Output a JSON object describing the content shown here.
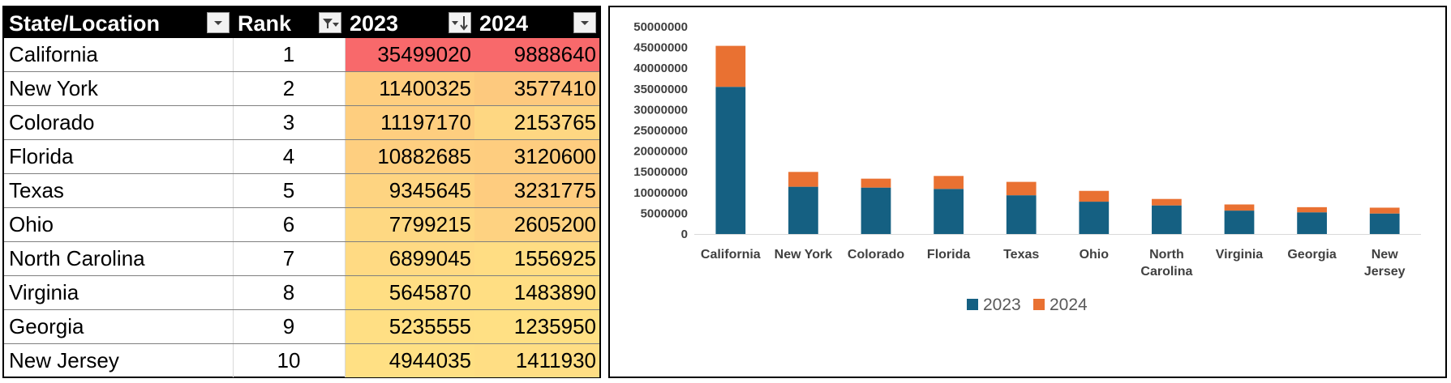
{
  "table": {
    "headers": [
      "State/Location",
      "Rank",
      "2023",
      "2024"
    ],
    "rows": [
      {
        "state": "California",
        "rank": "1",
        "y2023": "35499020",
        "y2024": "9888640"
      },
      {
        "state": "New York",
        "rank": "2",
        "y2023": "11400325",
        "y2024": "3577410"
      },
      {
        "state": "Colorado",
        "rank": "3",
        "y2023": "11197170",
        "y2024": "2153765"
      },
      {
        "state": "Florida",
        "rank": "4",
        "y2023": "10882685",
        "y2024": "3120600"
      },
      {
        "state": "Texas",
        "rank": "5",
        "y2023": "9345645",
        "y2024": "3231775"
      },
      {
        "state": "Ohio",
        "rank": "6",
        "y2023": "7799215",
        "y2024": "2605200"
      },
      {
        "state": "North Carolina",
        "rank": "7",
        "y2023": "6899045",
        "y2024": "1556925"
      },
      {
        "state": "Virginia",
        "rank": "8",
        "y2023": "5645870",
        "y2024": "1483890"
      },
      {
        "state": "Georgia",
        "rank": "9",
        "y2023": "5235555",
        "y2024": "1235950"
      },
      {
        "state": "New Jersey",
        "rank": "10",
        "y2023": "4944035",
        "y2024": "1411930"
      }
    ]
  },
  "chart_data": {
    "type": "bar",
    "stacked": true,
    "categories": [
      "California",
      "New York",
      "Colorado",
      "Florida",
      "Texas",
      "Ohio",
      "North Carolina",
      "Virginia",
      "Georgia",
      "New Jersey"
    ],
    "category_lines": [
      [
        "California"
      ],
      [
        "New York"
      ],
      [
        "Colorado"
      ],
      [
        "Florida"
      ],
      [
        "Texas"
      ],
      [
        "Ohio"
      ],
      [
        "North",
        "Carolina"
      ],
      [
        "Virginia"
      ],
      [
        "Georgia"
      ],
      [
        "New",
        "Jersey"
      ]
    ],
    "series": [
      {
        "name": "2023",
        "color": "#156082",
        "values": [
          35499020,
          11400325,
          11197170,
          10882685,
          9345645,
          7799215,
          6899045,
          5645870,
          5235555,
          4944035
        ]
      },
      {
        "name": "2024",
        "color": "#e97132",
        "values": [
          9888640,
          3577410,
          2153765,
          3120600,
          3231775,
          2605200,
          1556925,
          1483890,
          1235950,
          1411930
        ]
      }
    ],
    "title": "",
    "xlabel": "",
    "ylabel": "",
    "ylim": [
      0,
      50000000
    ],
    "yticks": [
      "0",
      "5000000",
      "10000000",
      "15000000",
      "20000000",
      "25000000",
      "30000000",
      "35000000",
      "40000000",
      "45000000",
      "50000000"
    ],
    "grid": false,
    "legend": "bottom"
  },
  "colors": {
    "header_bg": "#000000",
    "scale_high": "#f8696b",
    "scale_mid": "#fcb579",
    "scale_low": "#ffe084"
  },
  "icons": {
    "state_filter": "dropdown-arrow-icon",
    "rank_filter": "filter-funnel-icon",
    "y2023_filter": "sort-descending-icon",
    "y2024_filter": "dropdown-arrow-icon"
  }
}
